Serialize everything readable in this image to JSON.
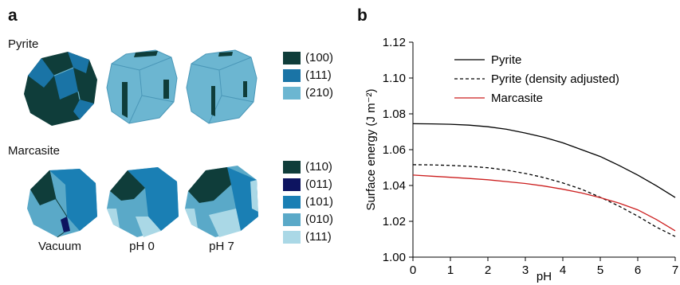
{
  "panel_a": {
    "label": "a",
    "rows": [
      {
        "label": "Pyrite"
      },
      {
        "label": "Marcasite"
      }
    ],
    "conditions": [
      "Vacuum",
      "pH 0",
      "pH 7"
    ],
    "pyrite_legend": [
      {
        "facet": "(100)",
        "color": "#0f3d3a"
      },
      {
        "facet": "(111)",
        "color": "#1a74a6"
      },
      {
        "facet": "(210)",
        "color": "#6cb6d1"
      }
    ],
    "marcasite_legend": [
      {
        "facet": "(110)",
        "color": "#0f3d3a"
      },
      {
        "facet": "(011)",
        "color": "#0d1460"
      },
      {
        "facet": "(101)",
        "color": "#1a7fb4"
      },
      {
        "facet": "(010)",
        "color": "#5aa9c8"
      },
      {
        "facet": "(111)",
        "color": "#aad8e6"
      }
    ]
  },
  "panel_b": {
    "label": "b"
  },
  "chart_data": {
    "type": "line",
    "title": "",
    "xlabel": "pH",
    "ylabel": "Surface energy (J m⁻²)",
    "xlim": [
      0,
      7
    ],
    "ylim": [
      1.0,
      1.12
    ],
    "x_ticks": [
      "0",
      "1",
      "2",
      "3",
      "4",
      "5",
      "6",
      "7"
    ],
    "y_ticks": [
      "1.00",
      "1.02",
      "1.04",
      "1.06",
      "1.08",
      "1.10",
      "1.12"
    ],
    "legend_position": "top-left",
    "grid": false,
    "x": [
      0,
      0.5,
      1,
      1.5,
      2,
      2.5,
      3,
      3.5,
      4,
      4.5,
      5,
      5.5,
      6,
      6.5,
      7
    ],
    "series": [
      {
        "name": "Pyrite",
        "color": "#000000",
        "dash": "solid",
        "values": [
          1.0745,
          1.0744,
          1.0742,
          1.0737,
          1.0728,
          1.0714,
          1.0693,
          1.0669,
          1.0638,
          1.06,
          1.0562,
          1.0512,
          1.0458,
          1.0398,
          1.0333
        ]
      },
      {
        "name": "Pyrite (density adjusted)",
        "color": "#000000",
        "dash": "dashed",
        "values": [
          1.0516,
          1.0515,
          1.0512,
          1.0507,
          1.0499,
          1.0486,
          1.0467,
          1.0444,
          1.0414,
          1.0379,
          1.0334,
          1.0285,
          1.0229,
          1.0167,
          1.0115
        ]
      },
      {
        "name": "Marcasite",
        "color": "#cc1f1f",
        "dash": "solid",
        "values": [
          1.0458,
          1.0452,
          1.0446,
          1.0439,
          1.0432,
          1.0422,
          1.0411,
          1.0397,
          1.0379,
          1.0358,
          1.0332,
          1.0302,
          1.0264,
          1.021,
          1.0147
        ]
      }
    ]
  }
}
